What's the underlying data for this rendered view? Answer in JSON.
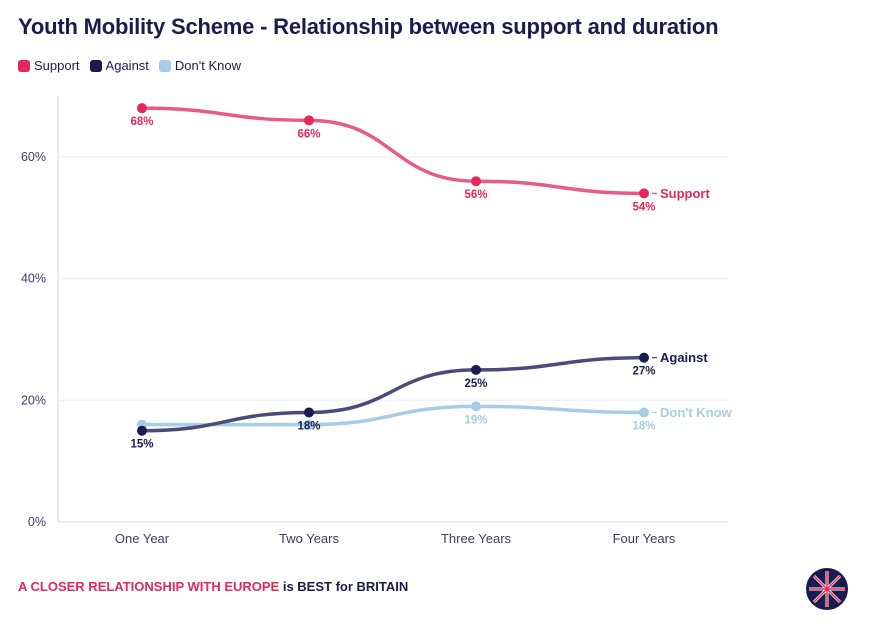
{
  "chart_data": {
    "type": "line",
    "title": "Youth Mobility Scheme - Relationship between support and duration",
    "categories": [
      "One Year",
      "Two Years",
      "Three Years",
      "Four Years"
    ],
    "ylim": [
      0,
      70
    ],
    "yticks": [
      0,
      20,
      40,
      60
    ],
    "ytick_labels": [
      "0%",
      "20%",
      "40%",
      "60%"
    ],
    "series": [
      {
        "name": "Support",
        "values": [
          68,
          66,
          56,
          54
        ],
        "labels": [
          "68%",
          "66%",
          "56%",
          "54%"
        ],
        "color": "#e4285a",
        "line_color": "#e85b83",
        "end_label": "Support"
      },
      {
        "name": "Against",
        "values": [
          15,
          18,
          25,
          27
        ],
        "labels": [
          "15%",
          "18%",
          "25%",
          "27%"
        ],
        "color": "#1b1c4e",
        "line_color": "#4a4b78",
        "end_label": "Against"
      },
      {
        "name": "Don't Know",
        "values": [
          16,
          16,
          19,
          18
        ],
        "labels": [
          "",
          "",
          "19%",
          "18%"
        ],
        "color": "#a7cde6",
        "line_color": "#a7cde6",
        "end_label": "Don't Know"
      }
    ]
  },
  "legend": [
    {
      "label": "Support",
      "color": "#e4285a"
    },
    {
      "label": "Against",
      "color": "#1b1c4e"
    },
    {
      "label": "Don't Know",
      "color": "#a7cde6"
    }
  ],
  "footer": {
    "highlight": "A CLOSER RELATIONSHIP WITH EUROPE",
    "rest": " is BEST for BRITAIN"
  }
}
